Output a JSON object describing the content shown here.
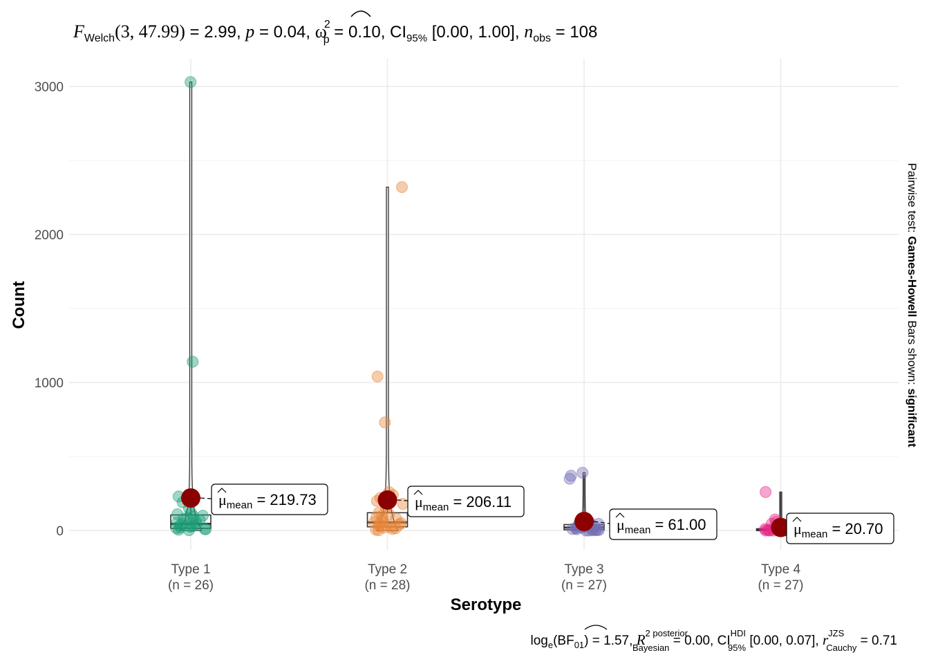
{
  "subtitle": {
    "F": "F",
    "F_sub": "Welch",
    "df": "(3, 47.99)",
    "F_val": " = 2.99, ",
    "p": "p",
    "p_val": " = 0.04, ",
    "omega": "ω",
    "omega_sup": "2",
    "omega_sub": "p",
    "omega_val": " = 0.10, CI",
    "ci_sub": "95%",
    "ci_val": " [0.00, 1.00], ",
    "n": "n",
    "n_sub": "obs",
    "n_val": " = 108"
  },
  "caption": {
    "log": "log",
    "log_sub": "e",
    "bf": "(BF",
    "bf_sub": "01",
    "bf_val": ") = 1.57, ",
    "r2": "R",
    "r2_sup": "2 posterior",
    "r2_sub": "Bayesian",
    "r2_val": " = 0.00, CI",
    "hdi_sup": "HDI",
    "hdi_sub": "95%",
    "hdi_val": " [0.00, 0.07], ",
    "r": "r",
    "r_sup": "JZS",
    "r_sub": "Cauchy",
    "r_val": " = 0.71"
  },
  "side_label": {
    "prefix": "Pairwise test: ",
    "test": "Games-Howell",
    "mid": " Bars shown: ",
    "shown": "significant"
  },
  "chart_data": {
    "type": "box-violin-scatter",
    "xlabel": "Serotype",
    "ylabel": "Count",
    "ylim": [
      -150,
      3100
    ],
    "yticks": [
      0,
      1000,
      2000,
      3000
    ],
    "grid": true,
    "categories": [
      "Type 1",
      "Type 2",
      "Type 3",
      "Type 4"
    ],
    "n_labels": [
      "(n = 26)",
      "(n = 28)",
      "(n = 27)",
      "(n = 27)"
    ],
    "colors": [
      "#1B9E77",
      "#E6863A",
      "#7570B3",
      "#E7298A"
    ],
    "mean_color": "#8B0000",
    "means": [
      219.73,
      206.11,
      61.0,
      20.7
    ],
    "mean_labels": [
      "219.73",
      "206.11",
      "61.00",
      "20.70"
    ],
    "mean_label_prefix": "μ",
    "mean_label_sub": "mean",
    "mean_label_eq": " = ",
    "boxes": [
      {
        "q1": 15,
        "median": 45,
        "q3": 105,
        "wlo": 0,
        "whi": 230
      },
      {
        "q1": 25,
        "median": 55,
        "q3": 120,
        "wlo": 0,
        "whi": 260
      },
      {
        "q1": 5,
        "median": 20,
        "q3": 40,
        "wlo": 0,
        "whi": 375
      },
      {
        "q1": 0,
        "median": 3,
        "q3": 12,
        "wlo": 0,
        "whi": 260
      }
    ],
    "violin_max": [
      3030,
      2320,
      390,
      260
    ],
    "points": [
      [
        3030,
        1140,
        230,
        190,
        150,
        120,
        110,
        100,
        95,
        85,
        80,
        70,
        60,
        55,
        50,
        45,
        40,
        35,
        30,
        25,
        20,
        15,
        10,
        8,
        5,
        2
      ],
      [
        2320,
        1040,
        730,
        260,
        240,
        220,
        200,
        180,
        150,
        120,
        110,
        100,
        90,
        80,
        75,
        60,
        55,
        50,
        45,
        40,
        35,
        30,
        25,
        20,
        15,
        10,
        5,
        2
      ],
      [
        390,
        370,
        350,
        60,
        55,
        50,
        45,
        40,
        35,
        30,
        28,
        25,
        22,
        20,
        18,
        15,
        12,
        10,
        8,
        6,
        5,
        4,
        3,
        2,
        1,
        0,
        0
      ],
      [
        260,
        75,
        60,
        45,
        35,
        25,
        20,
        15,
        12,
        10,
        8,
        6,
        5,
        4,
        3,
        3,
        2,
        2,
        1,
        1,
        1,
        0,
        0,
        0,
        0,
        0,
        0
      ]
    ]
  }
}
